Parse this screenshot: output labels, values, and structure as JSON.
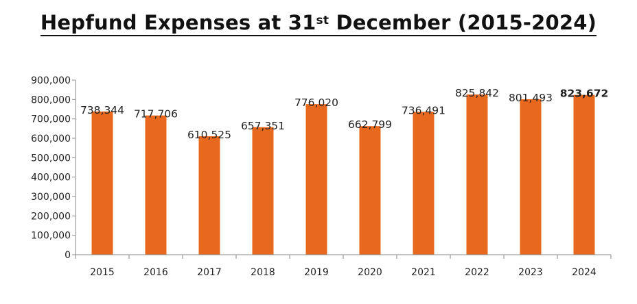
{
  "chart_data": {
    "type": "bar",
    "title": {
      "prefix": "Hepfund Expenses at 31",
      "superscript": "st",
      "suffix": " December (2015-2024)"
    },
    "xlabel": "",
    "ylabel": "",
    "categories": [
      "2015",
      "2016",
      "2017",
      "2018",
      "2019",
      "2020",
      "2021",
      "2022",
      "2023",
      "2024"
    ],
    "values": [
      738344,
      717706,
      610525,
      657351,
      776020,
      662799,
      736491,
      825842,
      801493,
      823672
    ],
    "data_labels": [
      "738,344",
      "717,706",
      "610,525",
      "657,351",
      "776,020",
      "662,799",
      "736,491",
      "825,842",
      "801,493",
      "823,672"
    ],
    "highlight_label_index": 9,
    "ylim": [
      0,
      900000
    ],
    "yticks": [
      0,
      100000,
      200000,
      300000,
      400000,
      500000,
      600000,
      700000,
      800000,
      900000
    ],
    "ytick_labels": [
      "0",
      "100,000",
      "200,000",
      "300,000",
      "400,000",
      "500,000",
      "600,000",
      "700,000",
      "800,000",
      "900,000"
    ],
    "grid": false,
    "legend": "none",
    "colors": {
      "bar": "#E8681E",
      "axis": "#888888",
      "text": "#222222"
    }
  }
}
